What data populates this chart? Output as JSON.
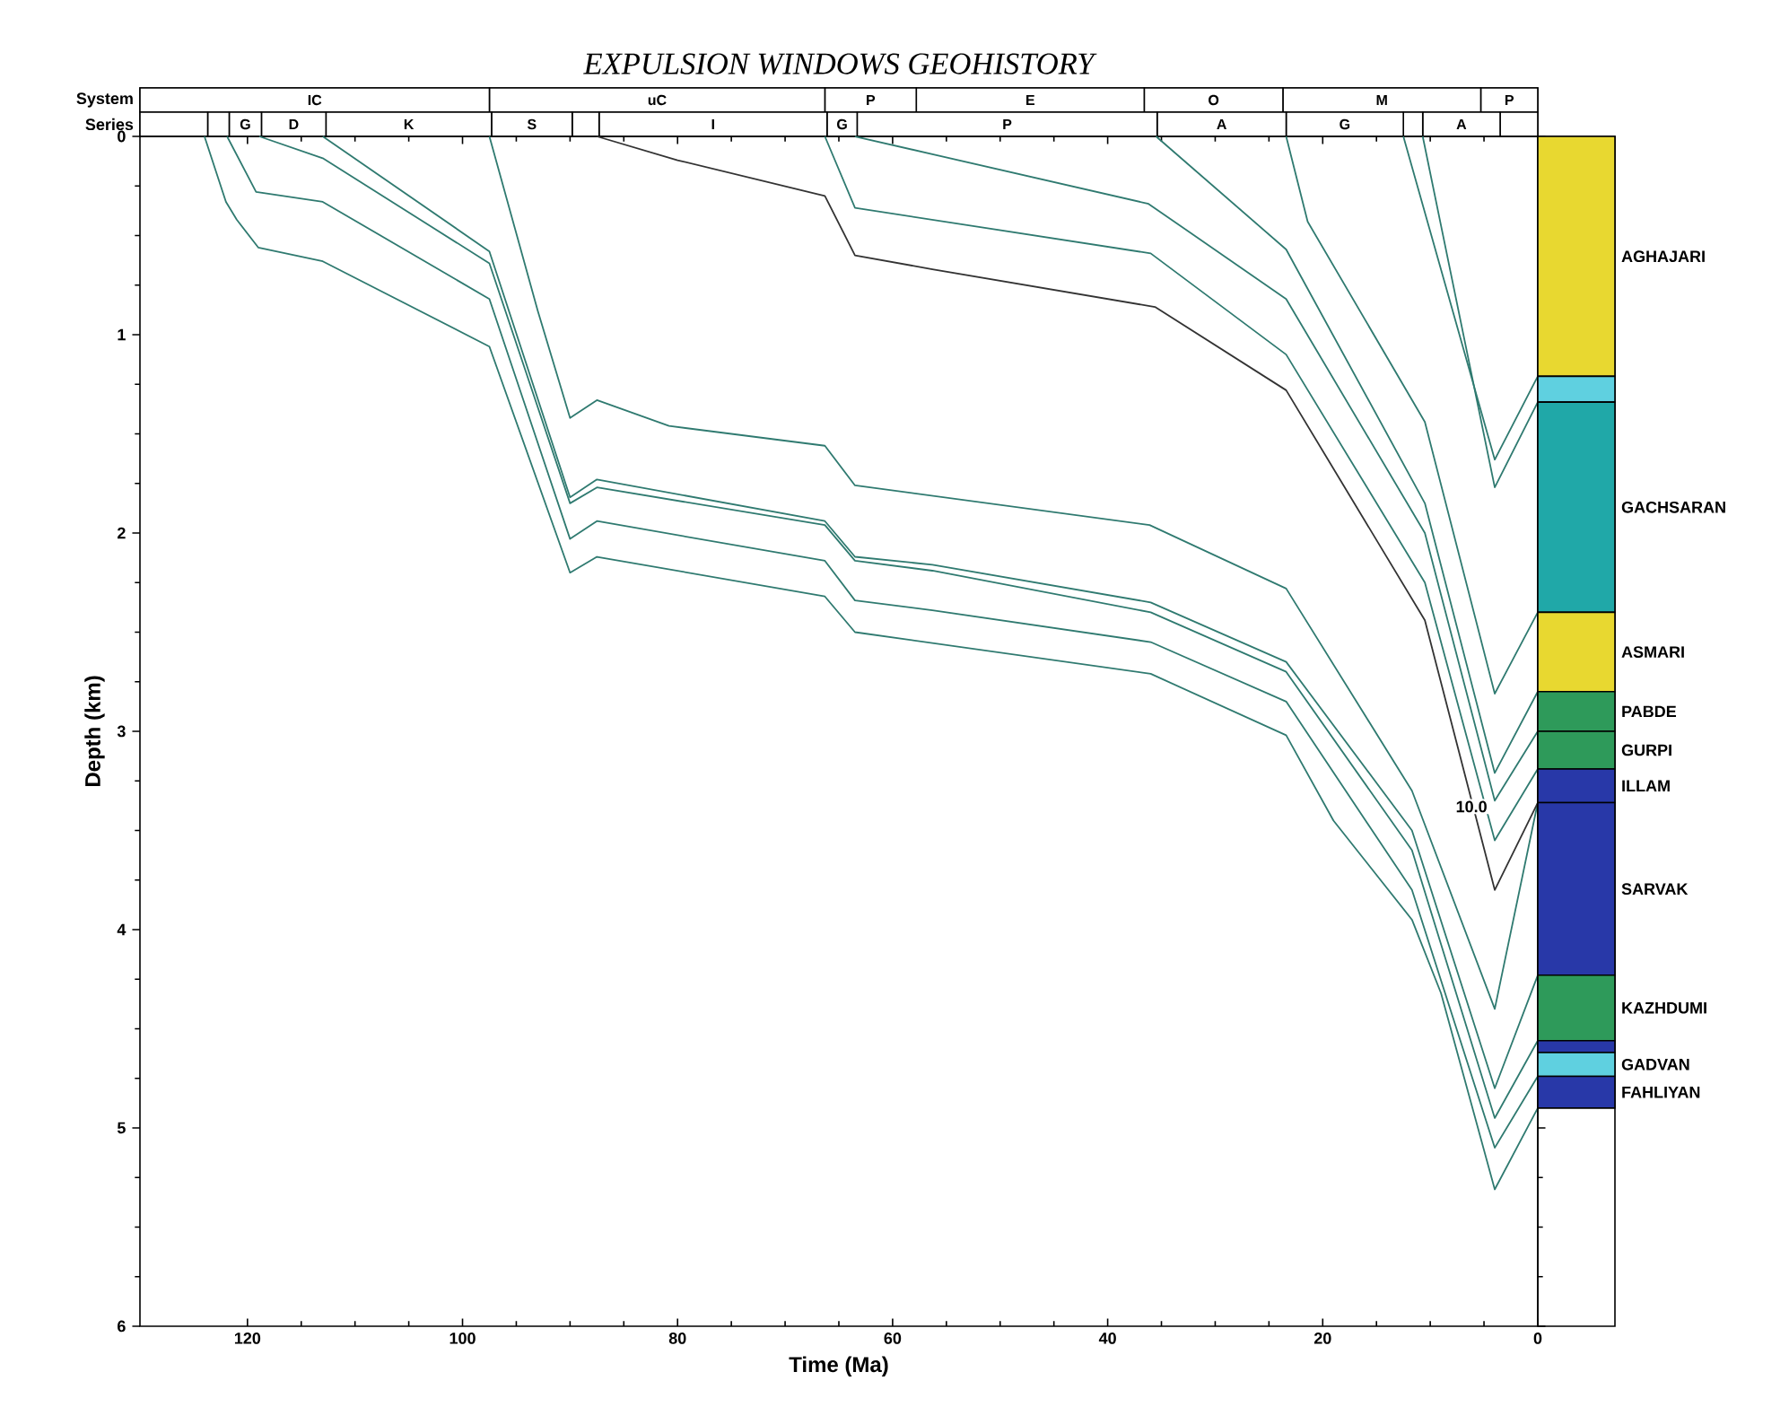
{
  "chart_data": [
    {
      "type": "bar",
      "title": "EXPULSION WINDOWS GEOHISTORY",
      "orientation": "horizontal",
      "stacked": true,
      "categories": [
        "System",
        "Series"
      ],
      "xlim": [
        130,
        0
      ],
      "tick_labels": "y",
      "series": [
        {
          "color": "#ffffff",
          "values": [
            5.3,
            3.5
          ],
          "value_labels": [
            "P",
            null
          ]
        },
        {
          "color": "#ffffff",
          "values": [
            18.4,
            7.2
          ],
          "value_labels": [
            "M",
            "A"
          ]
        },
        {
          "color": "#ffffff",
          "values": [
            12.9,
            1.8
          ],
          "value_labels": [
            "O",
            null
          ]
        },
        {
          "color": "#ffffff",
          "values": [
            21.2,
            10.9
          ],
          "value_labels": [
            "E",
            "G"
          ]
        },
        {
          "color": "#ffffff",
          "values": [
            8.5,
            12.0
          ],
          "value_labels": [
            "P",
            "A"
          ]
        },
        {
          "color": "#ffffff",
          "values": [
            31.2,
            27.9
          ],
          "value_labels": [
            "uC",
            "P"
          ]
        },
        {
          "color": "#ffffff",
          "values": [
            32.5,
            2.8
          ],
          "value_labels": [
            "IC",
            "G"
          ]
        },
        {
          "color": "#ffffff",
          "values": [
            null,
            21.2
          ],
          "value_labels": [
            null,
            "I"
          ]
        },
        {
          "color": "#ffffff",
          "values": [
            null,
            2.5
          ],
          "value_labels": [
            null,
            null
          ]
        },
        {
          "color": "#ffffff",
          "values": [
            null,
            7.5
          ],
          "value_labels": [
            null,
            "S"
          ]
        },
        {
          "color": "#ffffff",
          "values": [
            null,
            15.4
          ],
          "value_labels": [
            null,
            "K"
          ]
        },
        {
          "color": "#ffffff",
          "values": [
            null,
            6.0
          ],
          "value_labels": [
            null,
            "D"
          ]
        },
        {
          "color": "#ffffff",
          "values": [
            null,
            3.0
          ],
          "value_labels": [
            null,
            "G"
          ]
        },
        {
          "color": "#ffffff",
          "values": [
            null,
            2.0
          ],
          "value_labels": [
            null,
            null
          ]
        },
        {
          "color": "#ffffff",
          "values": [
            null,
            6.3
          ],
          "value_labels": [
            null,
            null
          ]
        }
      ]
    },
    {
      "type": "line",
      "xlabel": "Time (Ma)",
      "ylabel": "Depth (km)",
      "xlim": [
        130,
        0
      ],
      "ylim": [
        6,
        0
      ],
      "xticks": [
        120,
        100,
        80,
        60,
        40,
        20,
        0
      ],
      "yticks": [
        0,
        1,
        2,
        3,
        4,
        5,
        6
      ],
      "annotations": [
        {
          "text": "10.0",
          "x": 4,
          "y": 3.38
        }
      ],
      "series": [
        {
          "color": "#2f7a70",
          "x": [
            124,
            122,
            121,
            119,
            113,
            97.5,
            90,
            87.5,
            66.3,
            63.5,
            36,
            23.4,
            19,
            11.7,
            9,
            4,
            0
          ],
          "values": [
            0,
            0.33,
            0.42,
            0.56,
            0.63,
            1.06,
            2.2,
            2.12,
            2.32,
            2.5,
            2.71,
            3.02,
            3.45,
            3.95,
            4.32,
            5.31,
            4.9
          ]
        },
        {
          "color": "#2f7a70",
          "x": [
            121.9,
            119.2,
            113,
            97.5,
            90,
            87.5,
            66.3,
            63.5,
            56.3,
            36,
            23.4,
            11.7,
            4,
            0
          ],
          "values": [
            0,
            0.28,
            0.33,
            0.82,
            2.03,
            1.94,
            2.14,
            2.34,
            2.39,
            2.55,
            2.85,
            3.8,
            5.1,
            4.74
          ]
        },
        {
          "color": "#2f7a70",
          "x": [
            118.9,
            113,
            97.5,
            90,
            87.5,
            66.3,
            63.5,
            56.3,
            36,
            23.4,
            11.7,
            4,
            0
          ],
          "values": [
            0,
            0.11,
            0.64,
            1.85,
            1.77,
            1.96,
            2.14,
            2.19,
            2.4,
            2.7,
            3.6,
            4.95,
            4.56
          ]
        },
        {
          "color": "#2f7a70",
          "x": [
            113,
            97.5,
            90,
            87.5,
            66.3,
            63.5,
            56.3,
            36,
            23.4,
            11.7,
            4,
            0
          ],
          "values": [
            0,
            0.58,
            1.82,
            1.73,
            1.94,
            2.12,
            2.16,
            2.35,
            2.65,
            3.5,
            4.8,
            4.23
          ]
        },
        {
          "color": "#2f7a70",
          "x": [
            97.5,
            93,
            90,
            87.5,
            80.8,
            66.3,
            63.5,
            36.1,
            23.4,
            11.7,
            4,
            0
          ],
          "values": [
            0,
            0.88,
            1.42,
            1.33,
            1.46,
            1.56,
            1.76,
            1.96,
            2.28,
            3.3,
            4.4,
            3.36
          ]
        },
        {
          "color": "#333333",
          "x": [
            87.5,
            80,
            66.3,
            63.5,
            56.3,
            35.6,
            23.4,
            10.5,
            4,
            0
          ],
          "values": [
            0,
            0.12,
            0.3,
            0.6,
            0.67,
            0.86,
            1.28,
            2.44,
            3.8,
            3.36
          ]
        },
        {
          "color": "#2f7a70",
          "x": [
            66.3,
            63.5,
            36,
            23.4,
            10.5,
            4,
            0
          ],
          "values": [
            0,
            0.36,
            0.59,
            1.1,
            2.25,
            3.55,
            3.19
          ]
        },
        {
          "color": "#2f7a70",
          "x": [
            63.5,
            56.3,
            36.2,
            23.4,
            10.5,
            4,
            0
          ],
          "values": [
            0,
            0.09,
            0.34,
            0.82,
            2.0,
            3.35,
            3.0
          ]
        },
        {
          "color": "#2f7a70",
          "x": [
            35.5,
            23.4,
            10.5,
            4,
            0
          ],
          "values": [
            0,
            0.57,
            1.85,
            3.21,
            2.8
          ]
        },
        {
          "color": "#2f7a70",
          "x": [
            23.4,
            21.4,
            10.5,
            4,
            0
          ],
          "values": [
            0,
            0.43,
            1.44,
            2.81,
            2.4
          ]
        },
        {
          "color": "#2f7a70",
          "x": [
            10.7,
            4,
            0
          ],
          "values": [
            0,
            1.77,
            1.34
          ]
        },
        {
          "color": "#2f7a70",
          "x": [
            12.5,
            4,
            0
          ],
          "values": [
            0,
            1.63,
            1.21
          ]
        }
      ]
    },
    {
      "type": "bar",
      "stacked": true,
      "categories": [
        null
      ],
      "ylim": [
        6,
        0
      ],
      "tick_labels": false,
      "series": [
        {
          "name": "AGHAJARI",
          "color": "#e8d830",
          "values": [
            1.21
          ]
        },
        {
          "color": "#5fd0e0",
          "values": [
            0.13
          ]
        },
        {
          "name": "GACHSARAN",
          "color": "#20a8a8",
          "values": [
            1.06
          ]
        },
        {
          "name": "ASMARI",
          "color": "#e8d830",
          "values": [
            0.4
          ]
        },
        {
          "name": "PABDE",
          "color": "#2e9a5a",
          "values": [
            0.2
          ]
        },
        {
          "name": "GURPI",
          "color": "#2e9a5a",
          "values": [
            0.19
          ]
        },
        {
          "name": "ILLAM",
          "color": "#2838a8",
          "values": [
            0.17
          ]
        },
        {
          "name": "SARVAK",
          "color": "#2838a8",
          "values": [
            0.87
          ]
        },
        {
          "name": "KAZHDUMI",
          "color": "#2e9a5a",
          "values": [
            0.33
          ]
        },
        {
          "color": "#2838a8",
          "values": [
            0.06
          ]
        },
        {
          "name": "GADVAN",
          "color": "#5fd0e0",
          "values": [
            0.12
          ]
        },
        {
          "name": "FAHLIYAN",
          "color": "#2838a8",
          "values": [
            0.16
          ]
        }
      ]
    }
  ]
}
